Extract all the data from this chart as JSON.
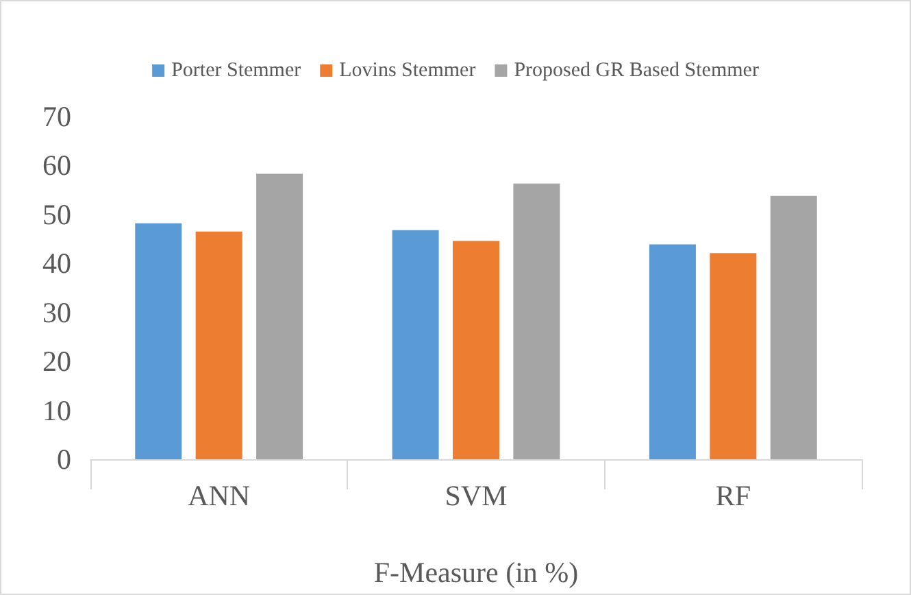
{
  "chart_data": {
    "type": "bar",
    "xlabel": "F-Measure (in %)",
    "categories": [
      "ANN",
      "SVM",
      "RF"
    ],
    "series": [
      {
        "name": "Porter Stemmer",
        "color": "#5b9bd5",
        "values": [
          48.2,
          46.8,
          43.9
        ]
      },
      {
        "name": "Lovins Stemmer",
        "color": "#ed7d31",
        "values": [
          46.5,
          44.6,
          42.1
        ]
      },
      {
        "name": "Proposed GR Based Stemmer",
        "color": "#a5a5a5",
        "values": [
          58.3,
          56.3,
          53.8
        ]
      }
    ],
    "ylim": [
      0,
      70
    ],
    "yticks": [
      0,
      10,
      20,
      30,
      40,
      50,
      60,
      70
    ],
    "grid": false,
    "legend": "top"
  }
}
